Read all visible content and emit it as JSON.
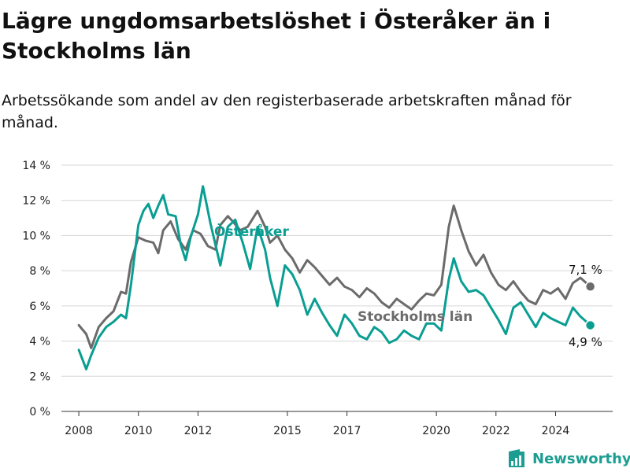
{
  "brand": {
    "name": "Newsworthy",
    "icon": "newsworthy-logo-icon"
  },
  "colors": {
    "osteraker": "#0a9e93",
    "stockholm": "#6b6b6b",
    "grid": "#d6d6d6"
  },
  "chart_data": {
    "type": "line",
    "title": "Lägre ungdomsarbetslöshet i Österåker än i Stockholms län",
    "subtitle": "Arbetssökande som andel av den registerbaserade arbetskraften månad för månad.",
    "xlabel": "",
    "ylabel": "",
    "ylim": [
      0,
      14
    ],
    "xlim": [
      "2007-06",
      "2025-12"
    ],
    "grid": true,
    "y_ticks": [
      "0 %",
      "2 %",
      "4 %",
      "6 %",
      "8 %",
      "10 %",
      "12 %",
      "14 %"
    ],
    "x_ticks": [
      "2008",
      "2010",
      "2012",
      "2015",
      "2017",
      "2020",
      "2022",
      "2024"
    ],
    "series": [
      {
        "name": "Stockholms län",
        "end_label": "7,1 %",
        "points": [
          [
            "2008-01",
            4.9
          ],
          [
            "2008-04",
            4.4
          ],
          [
            "2008-06",
            3.6
          ],
          [
            "2008-09",
            4.8
          ],
          [
            "2008-12",
            5.3
          ],
          [
            "2009-03",
            5.7
          ],
          [
            "2009-06",
            6.8
          ],
          [
            "2009-08",
            6.7
          ],
          [
            "2009-10",
            8.5
          ],
          [
            "2010-01",
            9.9
          ],
          [
            "2010-04",
            9.7
          ],
          [
            "2010-07",
            9.6
          ],
          [
            "2010-09",
            9.0
          ],
          [
            "2010-11",
            10.3
          ],
          [
            "2011-02",
            10.8
          ],
          [
            "2011-05",
            9.8
          ],
          [
            "2011-08",
            9.2
          ],
          [
            "2011-11",
            10.3
          ],
          [
            "2012-02",
            10.1
          ],
          [
            "2012-05",
            9.4
          ],
          [
            "2012-08",
            9.2
          ],
          [
            "2012-10",
            10.6
          ],
          [
            "2013-01",
            11.1
          ],
          [
            "2013-03",
            10.8
          ],
          [
            "2013-06",
            10.3
          ],
          [
            "2013-09",
            10.5
          ],
          [
            "2014-01",
            11.4
          ],
          [
            "2014-04",
            10.5
          ],
          [
            "2014-06",
            9.6
          ],
          [
            "2014-09",
            10.0
          ],
          [
            "2014-12",
            9.2
          ],
          [
            "2015-03",
            8.7
          ],
          [
            "2015-06",
            7.9
          ],
          [
            "2015-09",
            8.6
          ],
          [
            "2015-12",
            8.2
          ],
          [
            "2016-03",
            7.7
          ],
          [
            "2016-06",
            7.2
          ],
          [
            "2016-09",
            7.6
          ],
          [
            "2016-12",
            7.1
          ],
          [
            "2017-03",
            6.9
          ],
          [
            "2017-06",
            6.5
          ],
          [
            "2017-09",
            7.0
          ],
          [
            "2017-12",
            6.7
          ],
          [
            "2018-03",
            6.2
          ],
          [
            "2018-06",
            5.9
          ],
          [
            "2018-09",
            6.4
          ],
          [
            "2018-12",
            6.1
          ],
          [
            "2019-03",
            5.8
          ],
          [
            "2019-06",
            6.3
          ],
          [
            "2019-09",
            6.7
          ],
          [
            "2019-12",
            6.6
          ],
          [
            "2020-03",
            7.2
          ],
          [
            "2020-06",
            10.5
          ],
          [
            "2020-08",
            11.7
          ],
          [
            "2020-11",
            10.3
          ],
          [
            "2021-02",
            9.1
          ],
          [
            "2021-05",
            8.3
          ],
          [
            "2021-08",
            8.9
          ],
          [
            "2021-11",
            7.9
          ],
          [
            "2022-02",
            7.2
          ],
          [
            "2022-05",
            6.9
          ],
          [
            "2022-08",
            7.4
          ],
          [
            "2022-11",
            6.8
          ],
          [
            "2023-02",
            6.3
          ],
          [
            "2023-05",
            6.1
          ],
          [
            "2023-08",
            6.9
          ],
          [
            "2023-11",
            6.7
          ],
          [
            "2024-02",
            7.0
          ],
          [
            "2024-05",
            6.4
          ],
          [
            "2024-08",
            7.3
          ],
          [
            "2024-11",
            7.6
          ],
          [
            "2025-03",
            7.1
          ]
        ]
      },
      {
        "name": "Österåker",
        "end_label": "4,9 %",
        "points": [
          [
            "2008-01",
            3.5
          ],
          [
            "2008-04",
            2.4
          ],
          [
            "2008-06",
            3.2
          ],
          [
            "2008-09",
            4.2
          ],
          [
            "2008-12",
            4.8
          ],
          [
            "2009-03",
            5.1
          ],
          [
            "2009-06",
            5.5
          ],
          [
            "2009-08",
            5.3
          ],
          [
            "2009-10",
            7.2
          ],
          [
            "2010-01",
            10.6
          ],
          [
            "2010-03",
            11.4
          ],
          [
            "2010-05",
            11.8
          ],
          [
            "2010-07",
            11.0
          ],
          [
            "2010-09",
            11.7
          ],
          [
            "2010-11",
            12.3
          ],
          [
            "2011-01",
            11.2
          ],
          [
            "2011-04",
            11.1
          ],
          [
            "2011-06",
            9.5
          ],
          [
            "2011-08",
            8.6
          ],
          [
            "2011-10",
            9.9
          ],
          [
            "2012-01",
            11.2
          ],
          [
            "2012-03",
            12.8
          ],
          [
            "2012-06",
            10.7
          ],
          [
            "2012-08",
            9.5
          ],
          [
            "2012-10",
            8.3
          ],
          [
            "2013-01",
            10.5
          ],
          [
            "2013-04",
            10.9
          ],
          [
            "2013-07",
            9.6
          ],
          [
            "2013-10",
            8.1
          ],
          [
            "2014-01",
            10.5
          ],
          [
            "2014-04",
            9.2
          ],
          [
            "2014-06",
            7.6
          ],
          [
            "2014-09",
            6.0
          ],
          [
            "2014-12",
            8.3
          ],
          [
            "2015-03",
            7.8
          ],
          [
            "2015-06",
            6.9
          ],
          [
            "2015-09",
            5.5
          ],
          [
            "2015-12",
            6.4
          ],
          [
            "2016-03",
            5.6
          ],
          [
            "2016-06",
            4.9
          ],
          [
            "2016-09",
            4.3
          ],
          [
            "2016-12",
            5.5
          ],
          [
            "2017-03",
            5.0
          ],
          [
            "2017-06",
            4.3
          ],
          [
            "2017-09",
            4.1
          ],
          [
            "2017-12",
            4.8
          ],
          [
            "2018-03",
            4.5
          ],
          [
            "2018-06",
            3.9
          ],
          [
            "2018-09",
            4.1
          ],
          [
            "2018-12",
            4.6
          ],
          [
            "2019-03",
            4.3
          ],
          [
            "2019-06",
            4.1
          ],
          [
            "2019-09",
            5.0
          ],
          [
            "2019-12",
            5.0
          ],
          [
            "2020-03",
            4.6
          ],
          [
            "2020-06",
            7.5
          ],
          [
            "2020-08",
            8.7
          ],
          [
            "2020-11",
            7.4
          ],
          [
            "2021-02",
            6.8
          ],
          [
            "2021-05",
            6.9
          ],
          [
            "2021-08",
            6.6
          ],
          [
            "2021-11",
            5.9
          ],
          [
            "2022-02",
            5.2
          ],
          [
            "2022-05",
            4.4
          ],
          [
            "2022-08",
            5.9
          ],
          [
            "2022-11",
            6.2
          ],
          [
            "2023-02",
            5.5
          ],
          [
            "2023-05",
            4.8
          ],
          [
            "2023-08",
            5.6
          ],
          [
            "2023-11",
            5.3
          ],
          [
            "2024-02",
            5.1
          ],
          [
            "2024-05",
            4.9
          ],
          [
            "2024-08",
            5.9
          ],
          [
            "2024-11",
            5.4
          ],
          [
            "2025-03",
            4.9
          ]
        ]
      }
    ]
  }
}
